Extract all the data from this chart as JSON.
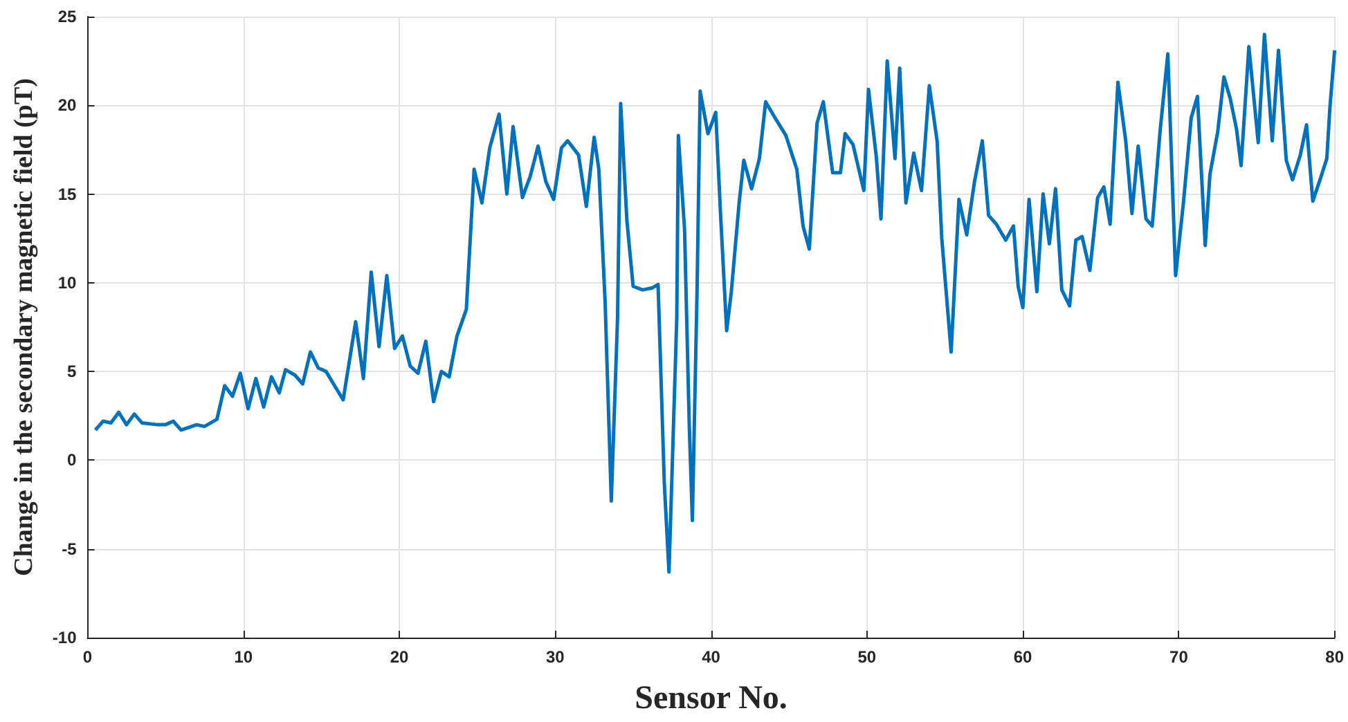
{
  "chart_data": {
    "type": "line",
    "xlabel": "Sensor No.",
    "ylabel": "Change in the secondary magnetic field (pT)",
    "xlim": [
      0,
      80
    ],
    "xticks": [
      0,
      10,
      20,
      30,
      40,
      50,
      60,
      70,
      80
    ],
    "ylim": [
      -10,
      25
    ],
    "yticks": [
      -10,
      -5,
      0,
      5,
      10,
      15,
      20,
      25
    ],
    "grid": true,
    "marker": "none",
    "line_style": "solid",
    "series": [
      {
        "color": "#0072bd",
        "x": [
          0.5,
          1,
          1.5,
          2,
          2.5,
          3,
          3.5,
          4.5,
          5,
          5.5,
          6,
          7,
          7.5,
          8.3,
          8.8,
          9.3,
          9.8,
          10.3,
          10.8,
          11.3,
          11.8,
          12.3,
          12.7,
          13.3,
          13.8,
          14.3,
          14.8,
          15.3,
          16.4,
          17.2,
          17.7,
          18.2,
          18.7,
          19.2,
          19.7,
          20.2,
          20.7,
          21.2,
          21.7,
          22.2,
          22.7,
          23.2,
          23.7,
          24.3,
          24.8,
          25.3,
          25.8,
          26.4,
          26.9,
          27.3,
          27.9,
          28.4,
          28.9,
          29.4,
          29.9,
          30.4,
          30.8,
          31.5,
          32,
          32.5,
          32.8,
          33.2,
          33.6,
          34,
          34.2,
          34.6,
          35,
          35.6,
          36.2,
          36.6,
          37,
          37.3,
          37.8,
          37.9,
          38.3,
          38.6,
          38.8,
          39.1,
          39.3,
          39.8,
          40.3,
          40.6,
          41,
          41.3,
          41.8,
          42.1,
          42.6,
          43.1,
          43.5,
          44.1,
          44.8,
          45.5,
          45.9,
          46.3,
          46.8,
          47.2,
          47.8,
          48.3,
          48.6,
          49.1,
          49.8,
          50.1,
          50.6,
          50.9,
          51.3,
          51.8,
          52.1,
          52.5,
          53,
          53.5,
          54,
          54.5,
          54.8,
          55.4,
          55.9,
          56.4,
          56.9,
          57.4,
          57.8,
          58.3,
          58.9,
          59.4,
          59.7,
          60,
          60.4,
          60.9,
          61.3,
          61.7,
          62.1,
          62.5,
          63,
          63.4,
          63.8,
          64.3,
          64.8,
          65.2,
          65.6,
          66.1,
          66.6,
          67,
          67.4,
          67.9,
          68.3,
          68.8,
          69.3,
          69.8,
          70.3,
          70.8,
          71.2,
          71.7,
          72,
          72.5,
          72.9,
          73.3,
          73.7,
          74,
          74.5,
          75.1,
          75.5,
          76,
          76.4,
          76.9,
          77.3,
          77.8,
          78.2,
          78.6,
          79.1,
          79.5,
          79.7,
          80
        ],
        "values": [
          1.7,
          2.2,
          2.1,
          2.7,
          2.0,
          2.6,
          2.1,
          2.0,
          2.0,
          2.2,
          1.7,
          2.0,
          1.9,
          2.3,
          4.2,
          3.6,
          4.9,
          2.9,
          4.6,
          3.0,
          4.7,
          3.8,
          5.1,
          4.8,
          4.3,
          6.1,
          5.2,
          5.0,
          3.4,
          7.8,
          4.6,
          10.6,
          6.4,
          10.4,
          6.3,
          7.0,
          5.3,
          4.9,
          6.7,
          3.3,
          5.0,
          4.7,
          7.0,
          8.5,
          16.4,
          14.5,
          17.6,
          19.5,
          15.0,
          18.8,
          14.8,
          16.0,
          17.7,
          15.7,
          14.7,
          17.6,
          18.0,
          17.2,
          14.3,
          18.2,
          16.4,
          9.0,
          -2.3,
          8.0,
          20.1,
          13.5,
          9.8,
          9.6,
          9.7,
          9.9,
          -1.3,
          -6.3,
          8.0,
          18.3,
          13.0,
          2.0,
          -3.4,
          9.5,
          20.8,
          18.4,
          19.6,
          14.0,
          7.3,
          9.5,
          14.5,
          16.9,
          15.3,
          17.0,
          20.2,
          19.3,
          18.3,
          16.4,
          13.2,
          11.9,
          19.0,
          20.2,
          16.2,
          16.2,
          18.4,
          17.8,
          15.2,
          20.9,
          17.1,
          13.6,
          22.5,
          17.0,
          22.1,
          14.5,
          17.3,
          15.2,
          21.1,
          18.0,
          12.5,
          6.1,
          14.7,
          12.7,
          15.7,
          18.0,
          13.8,
          13.3,
          12.4,
          13.2,
          9.8,
          8.6,
          14.7,
          9.5,
          15.0,
          12.2,
          15.3,
          9.6,
          8.7,
          12.4,
          12.6,
          10.7,
          14.8,
          15.4,
          13.3,
          21.3,
          18.0,
          13.9,
          17.7,
          13.6,
          13.2,
          18.5,
          22.9,
          10.4,
          14.5,
          19.3,
          20.5,
          12.1,
          16.1,
          18.5,
          21.6,
          20.4,
          18.7,
          16.6,
          23.3,
          17.9,
          24.0,
          18.0,
          23.1,
          16.9,
          15.8,
          17.2,
          18.9,
          14.6,
          15.9,
          17.0,
          19.9,
          23.1
        ]
      }
    ]
  }
}
